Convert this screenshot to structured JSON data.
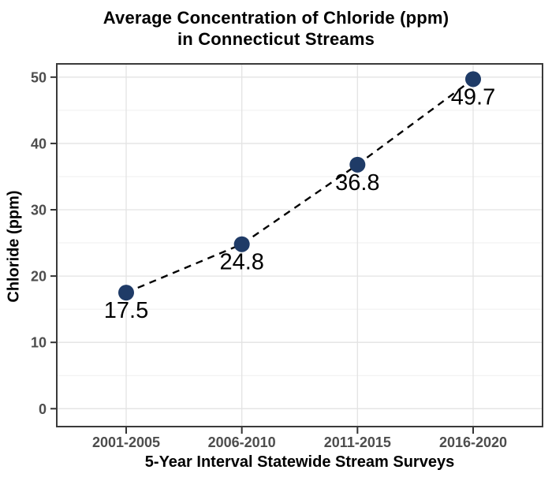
{
  "title": {
    "line1": "Average Concentration of Chloride (ppm)",
    "line2": "in Connecticut Streams"
  },
  "chart_data": {
    "type": "line",
    "title": "Average Concentration of Chloride (ppm) in Connecticut Streams",
    "categories": [
      "2001-2005",
      "2006-2010",
      "2011-2015",
      "2016-2020"
    ],
    "values": [
      17.5,
      24.8,
      36.8,
      49.7
    ],
    "point_labels": [
      "17.5",
      "24.8",
      "36.8",
      "49.7"
    ],
    "xlabel": "5-Year Interval Statewide Stream Surveys",
    "ylabel": "Chloride (ppm)",
    "ylim": [
      -2.7,
      52
    ],
    "yticks": [
      0,
      10,
      20,
      30,
      40,
      50
    ],
    "yminor_ticks": [
      5,
      15,
      25,
      35,
      45
    ],
    "ytick_labels": [
      "0",
      "10",
      "20",
      "30",
      "40",
      "50"
    ],
    "grid": "horizontal major+minor, vertical major at categories",
    "legend": false,
    "line_style": "dashed",
    "marker": "filled-circle",
    "styles": {
      "marker_color": "#1f3b67",
      "line_color": "#000000",
      "grid_major_color": "#e3e3e3",
      "grid_minor_color": "#efefef",
      "panel_border_color": "#3a3a3a",
      "tick_color": "#333333",
      "tick_label_color": "#4d4d4d",
      "text_color": "#000000",
      "background": "#ffffff"
    }
  }
}
